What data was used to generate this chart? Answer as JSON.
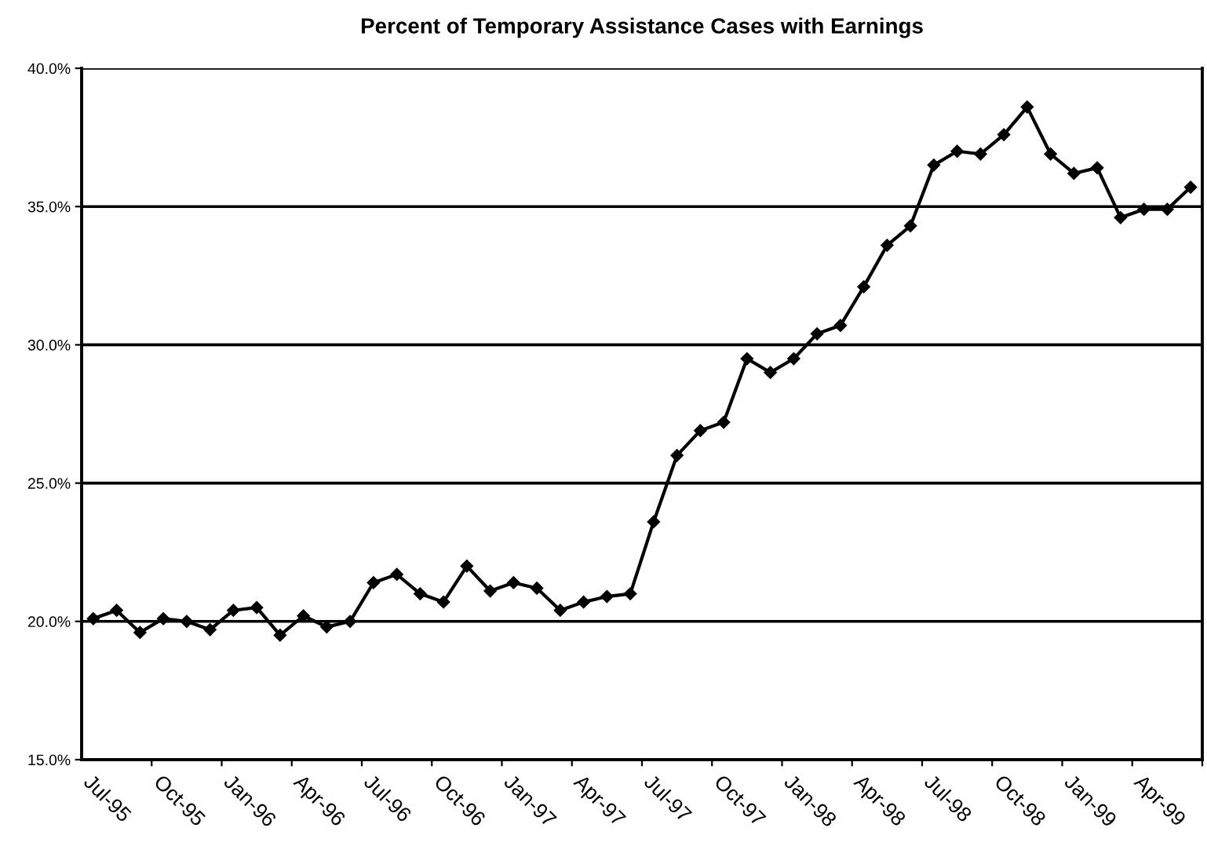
{
  "chart_data": {
    "type": "line",
    "title": "Percent of Temporary Assistance Cases with Earnings",
    "categories": [
      "Jul-95",
      null,
      null,
      "Oct-95",
      null,
      null,
      "Jan-96",
      null,
      null,
      "Apr-96",
      null,
      null,
      "Jul-96",
      null,
      null,
      "Oct-96",
      null,
      null,
      "Jan-97",
      null,
      null,
      "Apr-97",
      null,
      null,
      "Jul-97",
      null,
      null,
      "Oct-97",
      null,
      null,
      "Jan-98",
      null,
      null,
      "Apr-98",
      null,
      null,
      "Jul-98",
      null,
      null,
      "Oct-98",
      null,
      null,
      "Jan-99",
      null,
      null,
      "Apr-99",
      null,
      null
    ],
    "series": [
      {
        "color": "#000000",
        "values": [
          20.1,
          20.4,
          19.6,
          20.1,
          20.0,
          19.7,
          20.4,
          20.5,
          19.5,
          20.2,
          19.8,
          20.0,
          21.4,
          21.7,
          21.0,
          20.7,
          22.0,
          21.1,
          21.4,
          21.2,
          20.4,
          20.7,
          20.9,
          21.0,
          23.6,
          26.0,
          26.9,
          27.2,
          29.5,
          29.0,
          29.5,
          30.4,
          30.7,
          32.1,
          33.6,
          34.3,
          36.5,
          37.0,
          36.9,
          37.6,
          38.6,
          36.9,
          36.2,
          36.4,
          34.6,
          34.9,
          34.9,
          35.7
        ]
      }
    ],
    "ylim": [
      15,
      40
    ],
    "yticks": [
      {
        "value": 15,
        "label": "15.0%"
      },
      {
        "value": 20,
        "label": "20.0%"
      },
      {
        "value": 25,
        "label": "25.0%"
      },
      {
        "value": 30,
        "label": "30.0%"
      },
      {
        "value": 35,
        "label": "35.0%"
      },
      {
        "value": 40,
        "label": "40.0%"
      }
    ],
    "grid": "y",
    "marker": "diamond",
    "line_style": "solid"
  }
}
